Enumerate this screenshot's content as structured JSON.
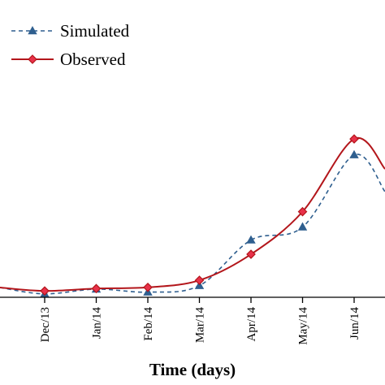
{
  "chart_data": {
    "type": "line",
    "xlabel": "Time (days)",
    "ylabel": "",
    "categories": [
      "Dec/13",
      "Jan/14",
      "Feb/14",
      "Mar/14",
      "Apr/14",
      "May/14",
      "Jun/14"
    ],
    "grid": false,
    "legend": "top-left",
    "series": [
      {
        "name": "Simulated",
        "color": "#2f5f8f",
        "line_style": "dashed",
        "marker": "triangle",
        "values": [
          0.3,
          1.1,
          0.6,
          1.7,
          9.4,
          11.6,
          23.8
        ]
      },
      {
        "name": "Observed",
        "color": "#b3161b",
        "marker_fill": "#e8314a",
        "line_style": "solid",
        "marker": "diamond",
        "values": [
          0.8,
          1.2,
          1.4,
          2.6,
          7.0,
          14.2,
          26.5
        ]
      }
    ]
  }
}
